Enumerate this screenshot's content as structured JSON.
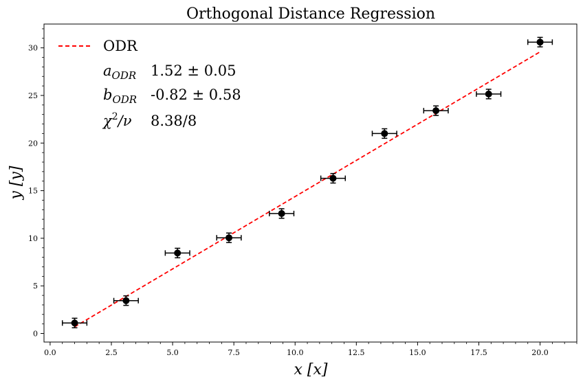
{
  "chart_data": {
    "type": "scatter",
    "title": "Orthogonal Distance Regression",
    "xlabel": "x [x]",
    "ylabel": "y [y]",
    "xlim": [
      -0.25,
      21.5
    ],
    "ylim": [
      -0.9,
      32.5
    ],
    "xticks": [
      0.0,
      2.5,
      5.0,
      7.5,
      10.0,
      12.5,
      15.0,
      17.5,
      20.0
    ],
    "xtick_labels": [
      "0.0",
      "2.5",
      "5.0",
      "7.5",
      "10.0",
      "12.5",
      "15.0",
      "17.5",
      "20.0"
    ],
    "yticks": [
      0,
      5,
      10,
      15,
      20,
      25,
      30
    ],
    "ytick_labels": [
      "0",
      "5",
      "10",
      "15",
      "20",
      "25",
      "30"
    ],
    "grid": false,
    "legend_position": "top-left",
    "series": [
      {
        "type": "errorbar",
        "color": "#000000",
        "x": [
          1.0,
          3.1,
          5.2,
          7.3,
          9.45,
          11.55,
          13.65,
          15.75,
          17.9,
          20.0
        ],
        "y": [
          1.1,
          3.45,
          8.45,
          10.05,
          12.6,
          16.3,
          21.0,
          23.4,
          25.15,
          30.6
        ],
        "xerr": [
          0.5,
          0.5,
          0.5,
          0.5,
          0.5,
          0.5,
          0.5,
          0.5,
          0.5,
          0.5
        ],
        "yerr": [
          0.5,
          0.5,
          0.5,
          0.5,
          0.5,
          0.5,
          0.5,
          0.5,
          0.5,
          0.5
        ]
      },
      {
        "name": "ODR",
        "type": "line",
        "style": "dashed",
        "color": "#ff0000",
        "x": [
          1.0,
          20.0
        ],
        "y": [
          0.7,
          29.58
        ]
      }
    ],
    "legend": {
      "entries": [
        "ODR"
      ],
      "params": [
        {
          "symbol": "a",
          "subscript": "ODR",
          "value": "1.52 ± 0.05"
        },
        {
          "symbol": "b",
          "subscript": "ODR",
          "value": "-0.82 ± 0.58"
        },
        {
          "symbol": "χ",
          "superscript": "2",
          "suffix": "/ν",
          "value": "8.38/8"
        }
      ]
    }
  }
}
